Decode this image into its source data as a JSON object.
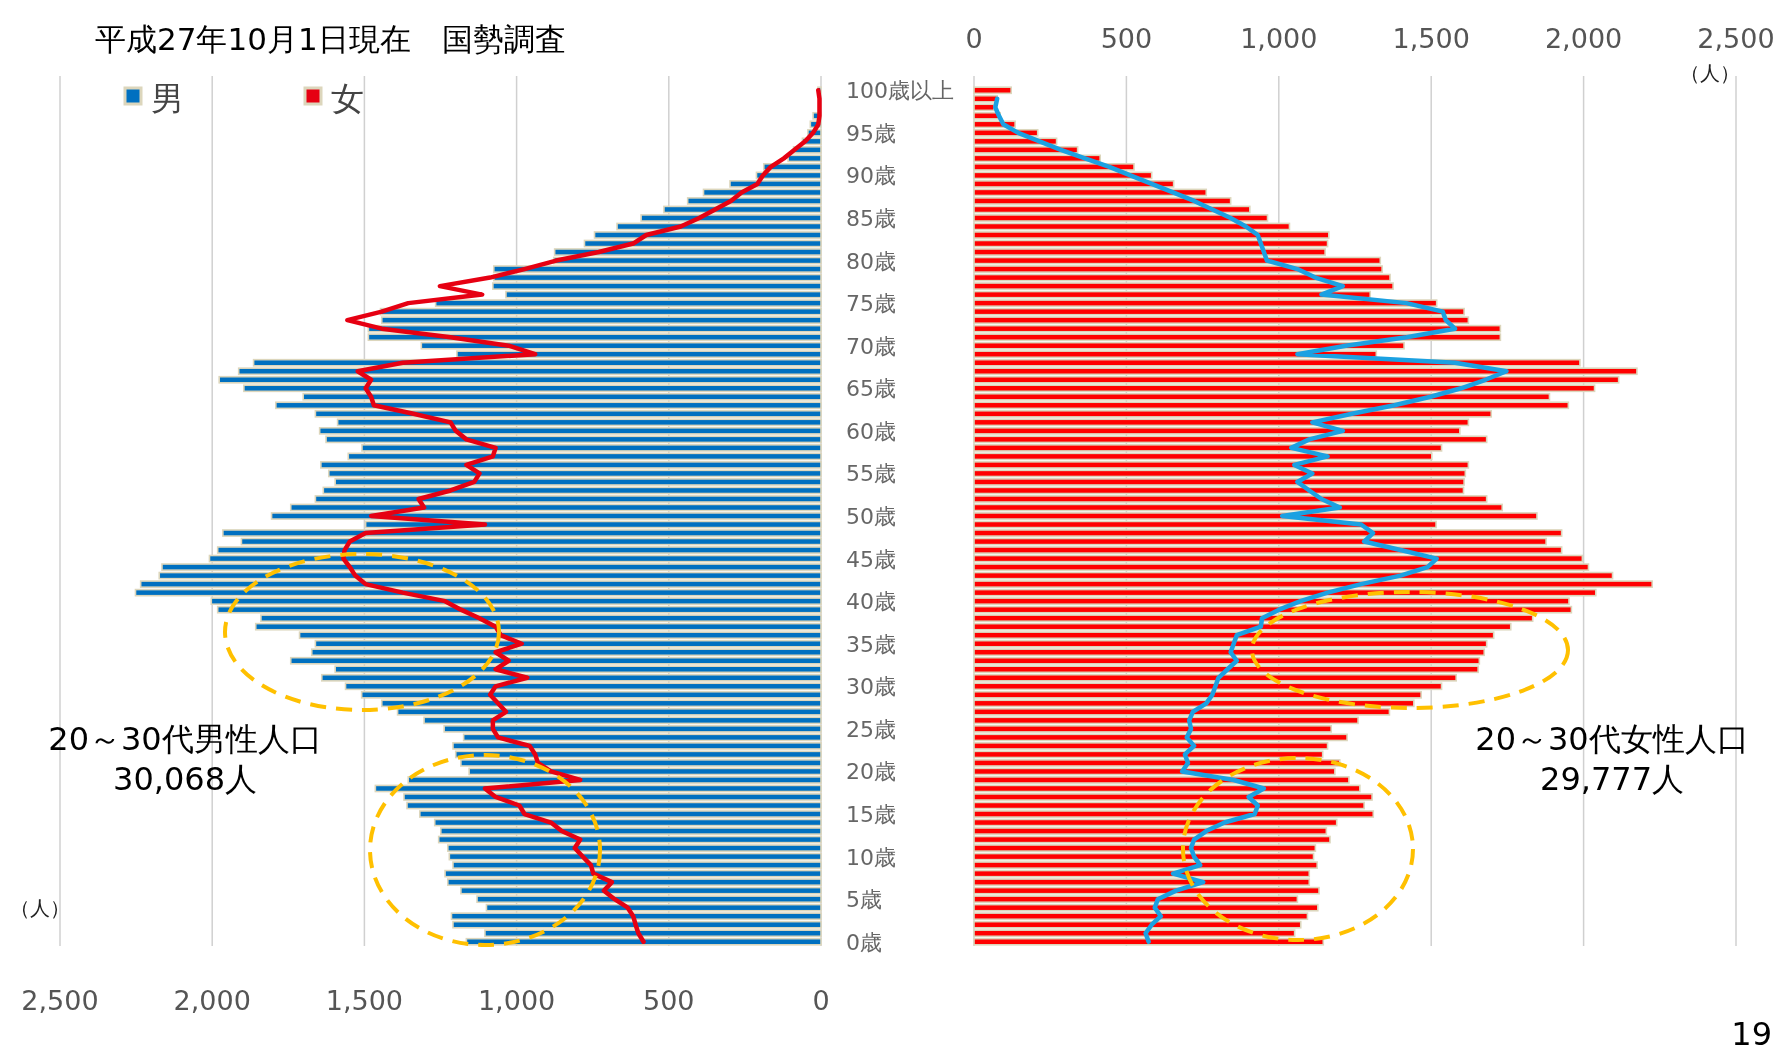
{
  "chart_data": [
    {
      "type": "bar",
      "orientation": "horizontal",
      "title": "平成27年10月1日現在　国勢調査",
      "xlabel": "（人）",
      "series": [
        {
          "name": "男",
          "color": "#0070c0",
          "values": [
            10,
            null,
            null,
            26,
            35,
            43,
            61,
            90,
            108,
            188,
            212,
            299,
            386,
            438,
            516,
            591,
            670,
            744,
            777,
            875,
            878,
            1075,
            1075,
            1078,
            1035,
            1266,
            1447,
            1443,
            1487,
            1487,
            1313,
            1196,
            1864,
            1913,
            1977,
            1896,
            1701,
            1791,
            1661,
            1588,
            1647,
            1626,
            1508,
            1553,
            1643,
            1617,
            1596,
            1635,
            1661,
            1742,
            1805,
            1496,
            1965,
            1904,
            1982,
            2009,
            2165,
            2174,
            2235,
            2252,
            2003,
            1982,
            1840,
            1857,
            1713,
            1661,
            1673,
            1742,
            1596,
            1640,
            1562,
            1509,
            1443,
            1391,
            1304,
            1238,
            1174,
            1209,
            1200,
            1183,
            1156,
            1356,
            1464,
            1370,
            1360,
            1318,
            1269,
            1249,
            1256,
            1226,
            1221,
            1209,
            1235,
            1226,
            1183,
            1130,
            1099,
            1214,
            1209,
            1104,
            1165
          ]
        },
        {
          "name": "女",
          "type": "line",
          "color": "#e60012",
          "values": [
            9,
            5,
            5,
            5,
            9,
            26,
            52,
            87,
            122,
            165,
            191,
            209,
            261,
            296,
            348,
            400,
            461,
            574,
            617,
            730,
            870,
            974,
            1087,
            1252,
            1113,
            1356,
            1443,
            1556,
            1443,
            1217,
            1026,
            939,
            1374,
            1522,
            1478,
            1496,
            1478,
            1469,
            1339,
            1217,
            1200,
            1165,
            1069,
            1078,
            1165,
            1122,
            1139,
            1217,
            1322,
            1304,
            1478,
            1104,
            1496,
            1548,
            1565,
            1569,
            1548,
            1530,
            1496,
            1374,
            1235,
            1183,
            1122,
            1069,
            1052,
            983,
            1069,
            1026,
            1069,
            965,
            1069,
            1087,
            1061,
            1035,
            1078,
            1078,
            1061,
            957,
            939,
            930,
            887,
            791,
            1104,
            1069,
            991,
            974,
            887,
            852,
            791,
            809,
            783,
            756,
            748,
            687,
            713,
            678,
            635,
            617,
            609,
            600,
            583
          ]
        }
      ],
      "xlim": [
        2500,
        0
      ],
      "xticks": [
        {
          "value": 2500,
          "label": "2,500"
        },
        {
          "value": 2000,
          "label": "2,000"
        },
        {
          "value": 1500,
          "label": "1,500"
        },
        {
          "value": 1000,
          "label": "1,000"
        },
        {
          "value": 500,
          "label": "500"
        },
        {
          "value": 0,
          "label": "0"
        }
      ],
      "grid": "x",
      "legend": "top left",
      "annotations": [
        "20～30代男性人口\n30,068人"
      ]
    },
    {
      "type": "bar",
      "orientation": "horizontal",
      "xlabel": "（人）",
      "categories": [
        "100歳以上",
        null,
        null,
        null,
        null,
        "95歳",
        null,
        null,
        null,
        null,
        "90歳",
        null,
        null,
        null,
        null,
        "85歳",
        null,
        null,
        null,
        null,
        "80歳",
        null,
        null,
        null,
        null,
        "75歳",
        null,
        null,
        null,
        null,
        "70歳",
        null,
        null,
        null,
        null,
        "65歳",
        null,
        null,
        null,
        null,
        "60歳",
        null,
        null,
        null,
        null,
        "55歳",
        null,
        null,
        null,
        null,
        "50歳",
        null,
        null,
        null,
        null,
        "45歳",
        null,
        null,
        null,
        null,
        "40歳",
        null,
        null,
        null,
        null,
        "35歳",
        null,
        null,
        null,
        null,
        "30歳",
        null,
        null,
        null,
        null,
        "25歳",
        null,
        null,
        null,
        null,
        "20歳",
        null,
        null,
        null,
        null,
        "15歳",
        null,
        null,
        null,
        null,
        "10歳",
        null,
        null,
        null,
        null,
        "5歳",
        null,
        null,
        null,
        null,
        "0歳"
      ],
      "series": [
        {
          "color": "#ff0000",
          "values": [
            122,
            76,
            66,
            86,
            135,
            209,
            271,
            340,
            414,
            525,
            583,
            655,
            762,
            842,
            905,
            963,
            1035,
            1164,
            1160,
            1152,
            1333,
            1339,
            1365,
            1375,
            1300,
            1518,
            1608,
            1622,
            1727,
            1727,
            1411,
            1320,
            1988,
            2175,
            2115,
            2036,
            1888,
            1950,
            1697,
            1622,
            1594,
            1682,
            1534,
            1502,
            1622,
            1612,
            1608,
            1606,
            1682,
            1733,
            1847,
            1516,
            1928,
            1877,
            1928,
            1996,
            2016,
            2095,
            2225,
            2040,
            1952,
            1960,
            1833,
            1761,
            1705,
            1682,
            1674,
            1658,
            1654,
            1582,
            1534,
            1467,
            1443,
            1363,
            1260,
            1172,
            1224,
            1160,
            1144,
            1200,
            1184,
            1230,
            1266,
            1306,
            1280,
            1310,
            1190,
            1156,
            1168,
            1120,
            1114,
            1126,
            1100,
            1100,
            1132,
            1061,
            1128,
            1094,
            1072,
            1052,
            1146
          ]
        },
        {
          "type": "line",
          "color": "#1ba1e2",
          "values": [
            null,
            76,
            70,
            82,
            96,
            145,
            215,
            285,
            364,
            444,
            513,
            583,
            653,
            722,
            782,
            842,
            892,
            931,
            941,
            951,
            961,
            1061,
            1120,
            1210,
            1140,
            1419,
            1538,
            1548,
            1578,
            1419,
            1220,
            1061,
            1578,
            1747,
            1678,
            1598,
            1498,
            1379,
            1240,
            1110,
            1210,
            1100,
            1041,
            1160,
            1051,
            1110,
            1061,
            1100,
            1140,
            1200,
            1011,
            1270,
            1309,
            1280,
            1399,
            1518,
            1488,
            1399,
            1270,
            1160,
            1071,
            1001,
            945,
            941,
            862,
            852,
            842,
            862,
            832,
            802,
            792,
            782,
            762,
            718,
            706,
            712,
            698,
            722,
            692,
            702,
            683,
            852,
            951,
            901,
            931,
            921,
            822,
            762,
            722,
            712,
            722,
            742,
            653,
            752,
            663,
            603,
            593,
            613,
            583,
            563,
            573
          ]
        }
      ],
      "xlim": [
        0,
        2500
      ],
      "xticks": [
        {
          "value": 0,
          "label": "0"
        },
        {
          "value": 500,
          "label": "500"
        },
        {
          "value": 1000,
          "label": "1,000"
        },
        {
          "value": 1500,
          "label": "1,500"
        },
        {
          "value": 2000,
          "label": "2,000"
        },
        {
          "value": 2500,
          "label": "2,500"
        }
      ],
      "grid": "x",
      "annotations": [
        "20～30代女性人口\n29,777人",
        "19"
      ]
    }
  ]
}
